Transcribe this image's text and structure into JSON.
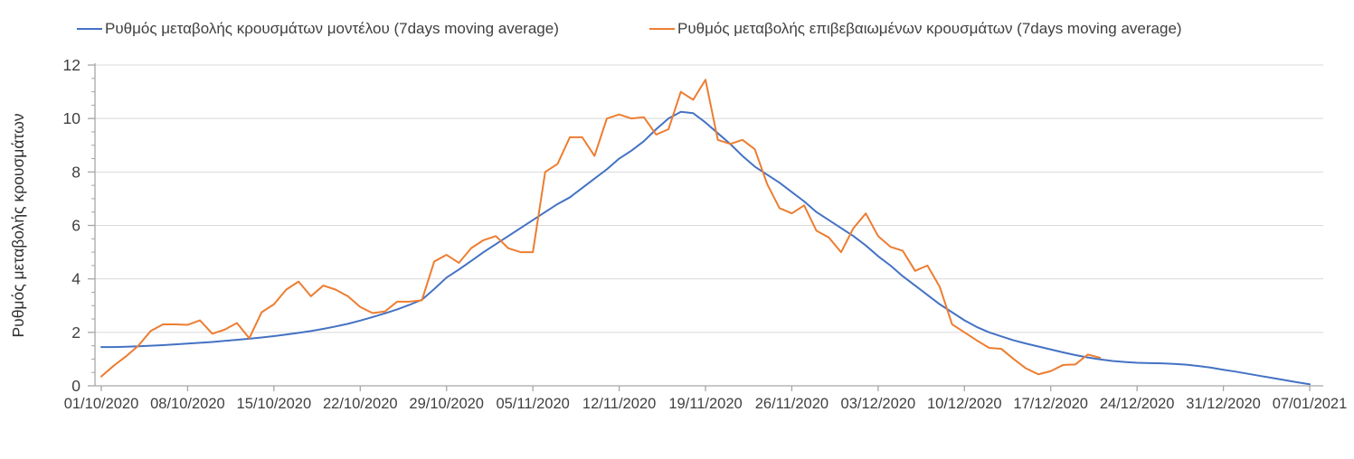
{
  "legend": {
    "items": [
      {
        "id": "model",
        "label": "Ρυθμός μεταβολής κρουσμάτων μοντέλου (7days moving average)",
        "color": "#4472C4"
      },
      {
        "id": "confirmed",
        "label": "Ρυθμός μεταβολής επιβεβαιωμένων κρουσμάτων (7days moving average)",
        "color": "#ED7D31"
      }
    ]
  },
  "chart_data": {
    "type": "line",
    "title": "",
    "xlabel": "",
    "ylabel": "Ρυθμός μεταβολής κρουσμάτων",
    "ylim": [
      0,
      12
    ],
    "y_ticks": [
      0,
      2,
      4,
      6,
      8,
      10,
      12
    ],
    "y_minor_tick_step": 0.5,
    "grid": "horizontal-major",
    "legend_position": "top",
    "x_unit": "daily values, day 0 = 01/10/2020",
    "x_range_days": [
      0,
      98
    ],
    "x_tick_days": [
      0,
      7,
      14,
      21,
      28,
      35,
      42,
      49,
      56,
      63,
      70,
      77,
      84,
      91,
      98
    ],
    "x_tick_labels": [
      "01/10/2020",
      "08/10/2020",
      "15/10/2020",
      "22/10/2020",
      "29/10/2020",
      "05/11/2020",
      "12/11/2020",
      "19/11/2020",
      "26/11/2020",
      "03/12/2020",
      "10/12/2020",
      "17/12/2020",
      "24/12/2020",
      "31/12/2020",
      "07/01/2021"
    ],
    "axis_color": "#A6A6A6",
    "gridline_color": "#D9D9D9",
    "tick_label_color": "#404040",
    "series": [
      {
        "name": "Ρυθμός μεταβολής κρουσμάτων μοντέλου (7days moving average)",
        "color": "#4472C4",
        "start_day": 0,
        "values_daily": [
          1.45,
          1.45,
          1.46,
          1.48,
          1.5,
          1.52,
          1.55,
          1.58,
          1.61,
          1.64,
          1.68,
          1.72,
          1.76,
          1.81,
          1.86,
          1.92,
          1.98,
          2.05,
          2.13,
          2.22,
          2.32,
          2.44,
          2.57,
          2.71,
          2.86,
          3.03,
          3.22,
          3.62,
          4.05,
          4.35,
          4.67,
          5.0,
          5.3,
          5.6,
          5.9,
          6.2,
          6.5,
          6.8,
          7.05,
          7.4,
          7.75,
          8.1,
          8.5,
          8.8,
          9.15,
          9.6,
          10.0,
          10.25,
          10.2,
          9.85,
          9.45,
          9.05,
          8.6,
          8.2,
          7.9,
          7.6,
          7.25,
          6.9,
          6.5,
          6.2,
          5.9,
          5.6,
          5.25,
          4.85,
          4.5,
          4.1,
          3.75,
          3.4,
          3.05,
          2.75,
          2.45,
          2.2,
          2.0,
          1.85,
          1.7,
          1.58,
          1.47,
          1.36,
          1.25,
          1.15,
          1.06,
          0.99,
          0.93,
          0.89,
          0.86,
          0.85,
          0.84,
          0.82,
          0.79,
          0.74,
          0.68,
          0.6,
          0.53,
          0.45,
          0.37,
          0.29,
          0.21,
          0.13,
          0.06
        ]
      },
      {
        "name": "Ρυθμός μεταβολής επιβεβαιωμένων κρουσμάτων (7days moving average)",
        "color": "#ED7D31",
        "start_day": 0,
        "values_daily": [
          0.35,
          0.75,
          1.1,
          1.5,
          2.05,
          2.3,
          2.3,
          2.28,
          2.45,
          1.95,
          2.1,
          2.35,
          1.78,
          2.75,
          3.05,
          3.6,
          3.9,
          3.35,
          3.75,
          3.6,
          3.35,
          2.95,
          2.72,
          2.78,
          3.15,
          3.15,
          3.2,
          4.65,
          4.9,
          4.6,
          5.15,
          5.45,
          5.6,
          5.15,
          5.0,
          5.0,
          8.0,
          8.3,
          9.3,
          9.3,
          8.6,
          10.0,
          10.15,
          10.0,
          10.05,
          9.4,
          9.6,
          11.0,
          10.7,
          11.45,
          9.2,
          9.05,
          9.2,
          8.85,
          7.55,
          6.65,
          6.45,
          6.75,
          5.8,
          5.55,
          5.0,
          5.9,
          6.45,
          5.6,
          5.2,
          5.05,
          4.3,
          4.5,
          3.7,
          2.3,
          2.0,
          1.7,
          1.42,
          1.38,
          1.0,
          0.65,
          0.43,
          0.55,
          0.78,
          0.8,
          1.17,
          1.05
        ]
      }
    ]
  }
}
